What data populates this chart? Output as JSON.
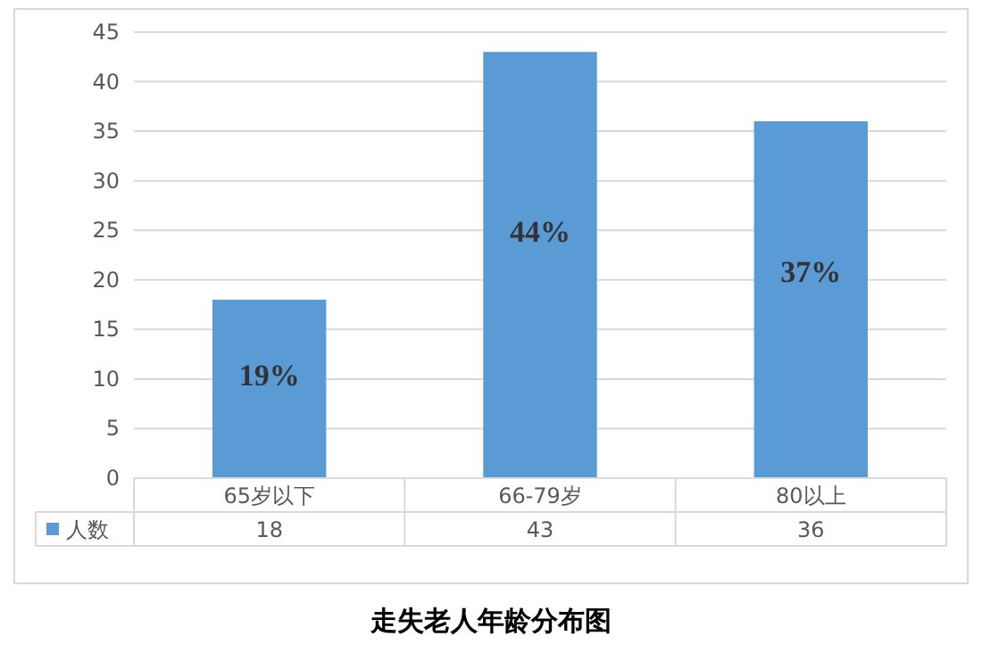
{
  "chart_data": {
    "type": "bar",
    "title": "走失老人年龄分布图",
    "categories": [
      "65岁以下",
      "66-79岁",
      "80以上"
    ],
    "series": [
      {
        "name": "人数",
        "color": "#5b9bd5",
        "values": [
          18,
          43,
          36
        ]
      }
    ],
    "ylim": [
      0,
      45
    ],
    "yticks": [
      0,
      5,
      10,
      15,
      20,
      25,
      30,
      35,
      40,
      45
    ],
    "grid": "y",
    "legend": "bottom",
    "data_labels": true,
    "annotations": [
      "19%",
      "44%",
      "37%"
    ]
  }
}
